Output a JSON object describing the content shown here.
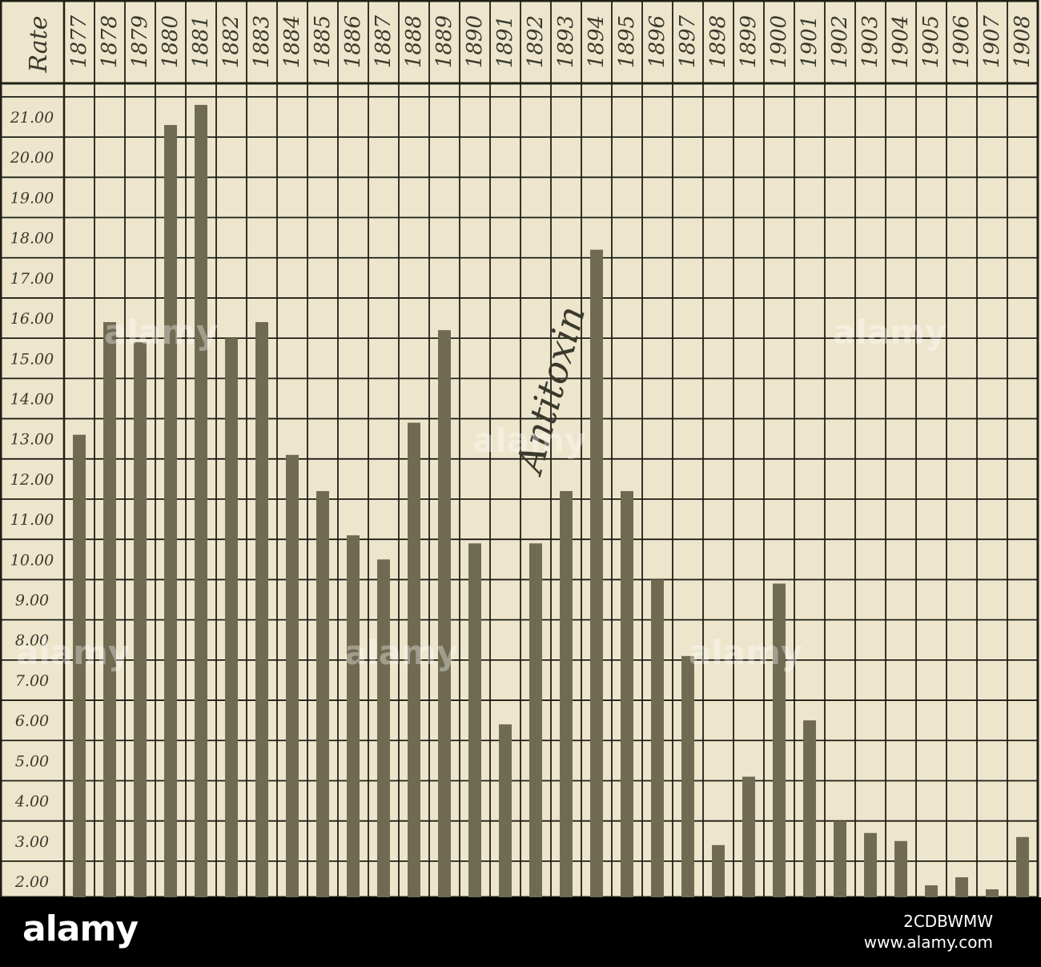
{
  "chart_data": {
    "type": "bar",
    "title": "",
    "xlabel": "",
    "ylabel": "Rate",
    "ylim": [
      1.5,
      22
    ],
    "y_ticks": [
      {
        "value": 21.0,
        "label": "21.00"
      },
      {
        "value": 20.0,
        "label": "20.00"
      },
      {
        "value": 19.0,
        "label": "19.00"
      },
      {
        "value": 18.0,
        "label": "18.00"
      },
      {
        "value": 17.0,
        "label": "17.00"
      },
      {
        "value": 16.0,
        "label": "16.00"
      },
      {
        "value": 15.0,
        "label": "15.00"
      },
      {
        "value": 14.0,
        "label": "14.00"
      },
      {
        "value": 13.0,
        "label": "13.00"
      },
      {
        "value": 12.0,
        "label": "12.00"
      },
      {
        "value": 11.0,
        "label": "11.00"
      },
      {
        "value": 10.0,
        "label": "10.00"
      },
      {
        "value": 9.0,
        "label": "9.00"
      },
      {
        "value": 8.0,
        "label": "8.00"
      },
      {
        "value": 7.0,
        "label": "7.00"
      },
      {
        "value": 6.0,
        "label": "6.00"
      },
      {
        "value": 5.0,
        "label": "5.00"
      },
      {
        "value": 4.0,
        "label": "4.00"
      },
      {
        "value": 3.0,
        "label": "3.00"
      },
      {
        "value": 2.0,
        "label": "2.00"
      }
    ],
    "categories": [
      "1877",
      "1878",
      "1879",
      "1880",
      "1881",
      "1882",
      "1883",
      "1884",
      "1885",
      "1886",
      "1887",
      "1888",
      "1889",
      "1890",
      "1891",
      "1892",
      "1893",
      "1894",
      "1895",
      "1896",
      "1897",
      "1898",
      "1899",
      "1900",
      "1901",
      "1902",
      "1903",
      "1904",
      "1905",
      "1906",
      "1907",
      "1908"
    ],
    "values": [
      13.1,
      15.9,
      15.4,
      20.8,
      21.3,
      15.5,
      15.9,
      12.6,
      11.7,
      10.6,
      10.0,
      13.4,
      15.7,
      10.4,
      5.9,
      10.4,
      11.7,
      17.7,
      11.7,
      9.5,
      7.6,
      2.9,
      4.6,
      9.4,
      6.0,
      3.5,
      3.2,
      3.0,
      1.9,
      2.1,
      1.8,
      3.1
    ],
    "annotation": "Antitoxin",
    "annotation_year": "1894",
    "grid": true,
    "legend": "none",
    "bar_color": "#6f6b52",
    "grid_color": "#1f1f16",
    "background_color": "#ede5cc"
  },
  "watermark": {
    "brand": "alamy",
    "image_id": "2CDBWMW",
    "url": "www.alamy.com"
  }
}
